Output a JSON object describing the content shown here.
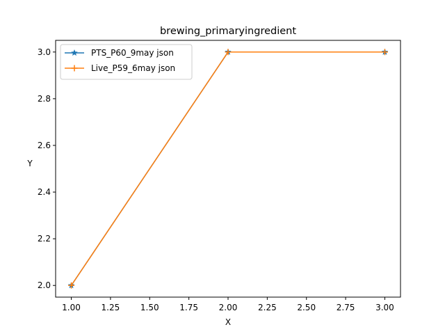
{
  "chart_data": {
    "type": "line",
    "title": "brewing_primaryingredient",
    "xlabel": "X",
    "ylabel": "Y",
    "xlim": [
      0.9,
      3.1
    ],
    "ylim": [
      1.95,
      3.05
    ],
    "xticks": [
      1.0,
      1.25,
      1.5,
      1.75,
      2.0,
      2.25,
      2.5,
      2.75,
      3.0
    ],
    "xtick_labels": [
      "1.00",
      "1.25",
      "1.50",
      "1.75",
      "2.00",
      "2.25",
      "2.50",
      "2.75",
      "3.00"
    ],
    "yticks": [
      2.0,
      2.2,
      2.4,
      2.6,
      2.8,
      3.0
    ],
    "ytick_labels": [
      "2.0",
      "2.2",
      "2.4",
      "2.6",
      "2.8",
      "3.0"
    ],
    "grid": false,
    "legend_position": "top-left",
    "series": [
      {
        "name": "PTS_P60_9may json",
        "marker": "star",
        "color": "#1f77b4",
        "x": [
          1,
          2,
          3
        ],
        "y": [
          2,
          3,
          3
        ]
      },
      {
        "name": "Live_P59_6may json",
        "marker": "plus",
        "color": "#ff7f0e",
        "x": [
          1,
          2,
          3
        ],
        "y": [
          2,
          3,
          3
        ]
      }
    ]
  }
}
